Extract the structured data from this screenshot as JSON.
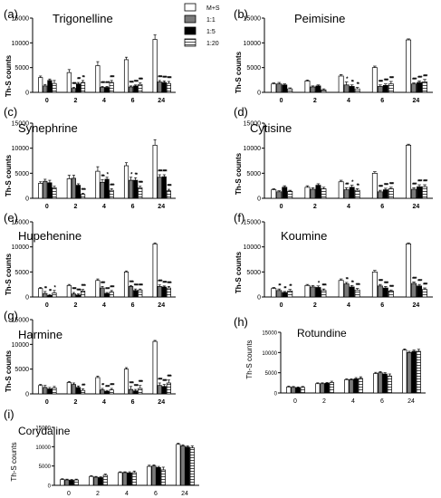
{
  "legend": {
    "entries": [
      {
        "label": "M+S",
        "pattern": "white"
      },
      {
        "label": "1:1",
        "pattern": "gray"
      },
      {
        "label": "1:5",
        "pattern": "black"
      },
      {
        "label": "1:20",
        "pattern": "striped"
      }
    ]
  },
  "colors": {
    "gray": "#7a7a7a",
    "black": "#000000",
    "white": "#ffffff",
    "stroke": "#000000"
  },
  "chart_data": [
    {
      "type": "bar",
      "panel_label": "(a)",
      "title": "Trigonelline",
      "ylabel": "Th-S counts",
      "categories": [
        "0",
        "2",
        "4",
        "6",
        "24"
      ],
      "yticks": [
        "0",
        "5000",
        "10000",
        "15000"
      ],
      "ylim": [
        0,
        15000
      ],
      "style": "bold",
      "series": [
        {
          "name": "M+S",
          "values": [
            3000,
            4000,
            5400,
            6600,
            10700
          ]
        },
        {
          "name": "1:1",
          "values": [
            1300,
            800,
            1000,
            1100,
            2100
          ]
        },
        {
          "name": "1:5",
          "values": [
            2400,
            1700,
            1000,
            1300,
            2000
          ]
        },
        {
          "name": "1:20",
          "values": [
            1800,
            2000,
            2000,
            1600,
            1800
          ]
        }
      ],
      "errors": [
        [
          300,
          600,
          800,
          500,
          900
        ],
        [
          300,
          200,
          200,
          200,
          300
        ],
        [
          300,
          300,
          200,
          200,
          300
        ],
        [
          600,
          400,
          400,
          300,
          400
        ]
      ],
      "sig": [
        [
          "",
          "",
          "",
          ""
        ],
        [
          "",
          "****",
          "***",
          "**"
        ],
        [
          "",
          "****",
          "****",
          "****"
        ],
        [
          "",
          "****",
          "****",
          "****"
        ],
        [
          "",
          "****",
          "****",
          "****"
        ]
      ]
    },
    {
      "type": "bar",
      "panel_label": "(b)",
      "title": "Peimisine",
      "ylabel": "Th-S counts",
      "categories": [
        "0",
        "2",
        "4",
        "6",
        "24"
      ],
      "yticks": [
        "0",
        "5000",
        "10000",
        "15000"
      ],
      "ylim": [
        0,
        15000
      ],
      "style": "bold",
      "series": [
        {
          "name": "M+S",
          "values": [
            1700,
            2300,
            3300,
            5000,
            10600
          ]
        },
        {
          "name": "1:1",
          "values": [
            1700,
            1100,
            1500,
            1200,
            1700
          ]
        },
        {
          "name": "1:5",
          "values": [
            1500,
            1300,
            1200,
            1400,
            2000
          ]
        },
        {
          "name": "1:20",
          "values": [
            700,
            500,
            700,
            1700,
            2100
          ]
        }
      ],
      "errors": [
        [
          200,
          200,
          300,
          300,
          200
        ],
        [
          300,
          200,
          600,
          300,
          200
        ],
        [
          200,
          200,
          300,
          300,
          300
        ],
        [
          200,
          200,
          300,
          500,
          500
        ]
      ],
      "sig": [
        [
          "",
          "",
          "",
          ""
        ],
        [
          "",
          "",
          "",
          ""
        ],
        [
          "",
          "*",
          "**",
          "**"
        ],
        [
          "",
          "****",
          "****",
          "****"
        ],
        [
          "",
          "****",
          "****",
          "****"
        ]
      ]
    },
    {
      "type": "bar",
      "panel_label": "(c)",
      "title": "Synephrine",
      "ylabel": "Th-S counts",
      "categories": [
        "0",
        "2",
        "4",
        "6",
        "24"
      ],
      "yticks": [
        "0",
        "5000",
        "10000",
        "15000"
      ],
      "ylim": [
        0,
        15000
      ],
      "style": "bold",
      "series": [
        {
          "name": "M+S",
          "values": [
            3000,
            3900,
            5400,
            6500,
            10600
          ]
        },
        {
          "name": "1:1",
          "values": [
            3400,
            4000,
            3200,
            3600,
            4200
          ]
        },
        {
          "name": "1:5",
          "values": [
            3100,
            2600,
            3800,
            3600,
            4300
          ]
        },
        {
          "name": "1:20",
          "values": [
            2100,
            800,
            1600,
            2100,
            1500
          ]
        }
      ],
      "errors": [
        [
          300,
          700,
          900,
          600,
          1100
        ],
        [
          400,
          600,
          500,
          600,
          500
        ],
        [
          500,
          300,
          400,
          500,
          400
        ],
        [
          300,
          200,
          300,
          300,
          300
        ]
      ],
      "sig": [
        [
          "",
          "",
          "",
          ""
        ],
        [
          "",
          "",
          "",
          "****"
        ],
        [
          "",
          "***",
          "*",
          "****"
        ],
        [
          "",
          "*",
          "**",
          "****"
        ],
        [
          "",
          "****",
          "****",
          "****"
        ]
      ]
    },
    {
      "type": "bar",
      "panel_label": "(d)",
      "title": "Cytisine",
      "ylabel": "Th-S counts",
      "categories": [
        "0",
        "2",
        "4",
        "6",
        "24"
      ],
      "yticks": [
        "0",
        "5000",
        "10000",
        "15000"
      ],
      "ylim": [
        0,
        15000
      ],
      "style": "bold",
      "series": [
        {
          "name": "M+S",
          "values": [
            1700,
            2200,
            3300,
            5000,
            10600
          ]
        },
        {
          "name": "1:1",
          "values": [
            1300,
            1800,
            1700,
            1300,
            1800
          ]
        },
        {
          "name": "1:5",
          "values": [
            2200,
            2600,
            2200,
            1700,
            2300
          ]
        },
        {
          "name": "1:20",
          "values": [
            1400,
            1900,
            1600,
            1900,
            2300
          ]
        }
      ],
      "errors": [
        [
          200,
          300,
          300,
          300,
          200
        ],
        [
          200,
          300,
          400,
          300,
          300
        ],
        [
          300,
          300,
          400,
          300,
          400
        ],
        [
          200,
          300,
          300,
          300,
          400
        ]
      ],
      "sig": [
        [
          "",
          "",
          "",
          ""
        ],
        [
          "",
          "",
          "",
          ""
        ],
        [
          "",
          "***",
          "*",
          "**"
        ],
        [
          "",
          "****",
          "****",
          "****"
        ],
        [
          "",
          "****",
          "****",
          "****"
        ]
      ]
    },
    {
      "type": "bar",
      "panel_label": "(e)",
      "title": "Hupehenine",
      "ylabel": "Th-S counts",
      "categories": [
        "0",
        "2",
        "4",
        "6",
        "24"
      ],
      "yticks": [
        "0",
        "5000",
        "10000",
        "15000"
      ],
      "ylim": [
        0,
        15000
      ],
      "style": "bold",
      "series": [
        {
          "name": "M+S",
          "values": [
            1700,
            2300,
            3300,
            5000,
            10600
          ]
        },
        {
          "name": "1:1",
          "values": [
            700,
            600,
            1800,
            2100,
            2100
          ]
        },
        {
          "name": "1:5",
          "values": [
            300,
            400,
            700,
            1300,
            2000
          ]
        },
        {
          "name": "1:20",
          "values": [
            800,
            1200,
            1000,
            1400,
            1800
          ]
        }
      ],
      "errors": [
        [
          200,
          200,
          300,
          200,
          200
        ],
        [
          400,
          300,
          300,
          200,
          300
        ],
        [
          200,
          200,
          200,
          300,
          200
        ],
        [
          500,
          300,
          300,
          200,
          300
        ]
      ],
      "sig": [
        [
          "",
          "**",
          "**",
          "*"
        ],
        [
          "",
          "****",
          "****",
          "****"
        ],
        [
          "",
          "****",
          "****",
          "****"
        ],
        [
          "",
          "****",
          "****",
          "****"
        ],
        [
          "",
          "****",
          "****",
          "****"
        ]
      ]
    },
    {
      "type": "bar",
      "panel_label": "(f)",
      "title": "Koumine",
      "ylabel": "Th-S counts",
      "categories": [
        "0",
        "2",
        "4",
        "6",
        "24"
      ],
      "yticks": [
        "0",
        "5000",
        "10000",
        "15000"
      ],
      "ylim": [
        0,
        15000
      ],
      "style": "bold",
      "series": [
        {
          "name": "M+S",
          "values": [
            1700,
            2300,
            3300,
            5000,
            10600
          ]
        },
        {
          "name": "1:1",
          "values": [
            1300,
            2000,
            2600,
            2200,
            2700
          ]
        },
        {
          "name": "1:5",
          "values": [
            900,
            1900,
            2000,
            1800,
            2200
          ]
        },
        {
          "name": "1:20",
          "values": [
            1200,
            1300,
            1400,
            1200,
            1500
          ]
        }
      ],
      "errors": [
        [
          200,
          200,
          300,
          300,
          200
        ],
        [
          300,
          300,
          300,
          300,
          300
        ],
        [
          200,
          300,
          300,
          300,
          300
        ],
        [
          300,
          300,
          300,
          200,
          300
        ]
      ],
      "sig": [
        [
          "",
          "**",
          "**",
          "**"
        ],
        [
          "",
          "",
          "*",
          "****"
        ],
        [
          "",
          "**",
          "**",
          "****"
        ],
        [
          "",
          "****",
          "****",
          "****"
        ],
        [
          "",
          "****",
          "****",
          "****"
        ]
      ]
    },
    {
      "type": "bar",
      "panel_label": "(g)",
      "title": "Harmine",
      "ylabel": "Th-S counts",
      "categories": [
        "0",
        "2",
        "4",
        "6",
        "24"
      ],
      "yticks": [
        "0",
        "5000",
        "10000",
        "15000"
      ],
      "ylim": [
        0,
        15000
      ],
      "style": "bold",
      "series": [
        {
          "name": "M+S",
          "values": [
            1700,
            2300,
            3300,
            5000,
            10600
          ]
        },
        {
          "name": "1:1",
          "values": [
            1300,
            1900,
            800,
            900,
            1700
          ]
        },
        {
          "name": "1:5",
          "values": [
            1000,
            1300,
            500,
            600,
            1500
          ]
        },
        {
          "name": "1:20",
          "values": [
            1200,
            700,
            800,
            1100,
            2200
          ]
        }
      ],
      "errors": [
        [
          200,
          200,
          300,
          300,
          200
        ],
        [
          400,
          300,
          300,
          600,
          500
        ],
        [
          300,
          300,
          200,
          300,
          400
        ],
        [
          300,
          300,
          300,
          600,
          600
        ]
      ],
      "sig": [
        [
          "",
          "",
          "",
          ""
        ],
        [
          "",
          "",
          "",
          "***"
        ],
        [
          "",
          "**",
          "****",
          "****"
        ],
        [
          "",
          "****",
          "****",
          "****"
        ],
        [
          "",
          "****",
          "****",
          "****"
        ]
      ]
    },
    {
      "type": "bar",
      "panel_label": "(h)",
      "title": "Rotundine",
      "ylabel": "Th-S counts",
      "categories": [
        "0",
        "2",
        "4",
        "6",
        "24"
      ],
      "yticks": [
        "0",
        "5000",
        "10000",
        "15000"
      ],
      "ylim": [
        0,
        15000
      ],
      "style": "plain",
      "series": [
        {
          "name": "M+S",
          "values": [
            1500,
            2300,
            3300,
            4800,
            10600
          ]
        },
        {
          "name": "1:1",
          "values": [
            1400,
            2300,
            3300,
            5000,
            10000
          ]
        },
        {
          "name": "1:5",
          "values": [
            1300,
            2400,
            3500,
            4700,
            10300
          ]
        },
        {
          "name": "1:20",
          "values": [
            1400,
            2600,
            3600,
            4200,
            10300
          ]
        }
      ],
      "errors": [
        [
          200,
          200,
          200,
          300,
          300
        ],
        [
          200,
          200,
          200,
          300,
          300
        ],
        [
          200,
          200,
          300,
          300,
          300
        ],
        [
          200,
          300,
          400,
          500,
          500
        ]
      ],
      "sig": []
    },
    {
      "type": "bar",
      "panel_label": "(i)",
      "title": "Corydaline",
      "ylabel": "Th-S counts",
      "categories": [
        "0",
        "2",
        "4",
        "6",
        "24"
      ],
      "yticks": [
        "0",
        "5000",
        "10000",
        "15000"
      ],
      "ylim": [
        0,
        15000
      ],
      "style": "plain",
      "series": [
        {
          "name": "M+S",
          "values": [
            1500,
            2300,
            3300,
            4900,
            10600
          ]
        },
        {
          "name": "1:1",
          "values": [
            1400,
            2100,
            3300,
            5000,
            10200
          ]
        },
        {
          "name": "1:5",
          "values": [
            1300,
            2000,
            3200,
            4600,
            9900
          ]
        },
        {
          "name": "1:20",
          "values": [
            1400,
            2600,
            3300,
            4000,
            9700
          ]
        }
      ],
      "errors": [
        [
          200,
          200,
          200,
          300,
          300
        ],
        [
          200,
          200,
          200,
          300,
          300
        ],
        [
          200,
          200,
          300,
          300,
          300
        ],
        [
          200,
          300,
          400,
          700,
          500
        ]
      ],
      "sig": []
    }
  ]
}
